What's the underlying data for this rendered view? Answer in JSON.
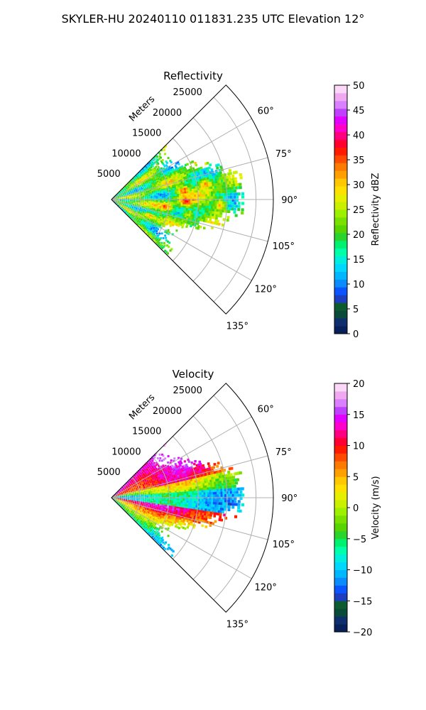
{
  "figure_title": "SKYLER-HU  20240110  011831.235 UTC Elevation 12°",
  "chart_data": [
    {
      "type": "polar-sector",
      "title": "Reflectivity",
      "radial_label": "Meters",
      "radial_ticks": [
        "5000",
        "10000",
        "15000",
        "20000",
        "25000"
      ],
      "radial_tick_values": [
        5000,
        10000,
        15000,
        20000,
        25000
      ],
      "rmax": 28000,
      "theta_range_deg": [
        45,
        135
      ],
      "theta_ticks": [
        "60°",
        "75°",
        "90°",
        "105°",
        "120°",
        "135°"
      ],
      "theta_tick_values": [
        60,
        75,
        90,
        105,
        120,
        135
      ],
      "echo_max_range": 23000,
      "colorbar": {
        "label": "Reflectivity dBZ",
        "range": [
          0,
          50
        ],
        "ticks": [
          "0",
          "5",
          "10",
          "15",
          "20",
          "25",
          "30",
          "35",
          "40",
          "45",
          "50"
        ],
        "tick_values": [
          0,
          5,
          10,
          15,
          20,
          25,
          30,
          35,
          40,
          45,
          50
        ],
        "colors": [
          "#08205a",
          "#0e2e6e",
          "#0a4a3a",
          "#0d5c30",
          "#1d3fbf",
          "#0a55ff",
          "#0a8cff",
          "#00b7ff",
          "#00d8ff",
          "#00eedd",
          "#00ffaa",
          "#00f070",
          "#2ad42a",
          "#58d400",
          "#7ae000",
          "#9cf000",
          "#c8f000",
          "#e6ef00",
          "#ffe000",
          "#ffc800",
          "#ffa000",
          "#ff7a00",
          "#ff4a00",
          "#ff1a00",
          "#ff0030",
          "#ff0080",
          "#ff00c8",
          "#e200ff",
          "#c040ff",
          "#d880ff",
          "#f0a8f0",
          "#fbd8f8"
        ]
      }
    },
    {
      "type": "polar-sector",
      "title": "Velocity",
      "radial_label": "Meters",
      "radial_ticks": [
        "5000",
        "10000",
        "15000",
        "20000",
        "25000"
      ],
      "radial_tick_values": [
        5000,
        10000,
        15000,
        20000,
        25000
      ],
      "rmax": 28000,
      "theta_range_deg": [
        45,
        135
      ],
      "theta_ticks": [
        "60°",
        "75°",
        "90°",
        "105°",
        "120°",
        "135°"
      ],
      "theta_tick_values": [
        60,
        75,
        90,
        105,
        120,
        135
      ],
      "echo_max_range": 23000,
      "colorbar": {
        "label": "Velocity (m/s)",
        "range": [
          -20,
          20
        ],
        "ticks": [
          "−20",
          "−15",
          "−10",
          "−5",
          "0",
          "5",
          "10",
          "15",
          "20"
        ],
        "tick_values": [
          -20,
          -15,
          -10,
          -5,
          0,
          5,
          10,
          15,
          20
        ],
        "colors": [
          "#08205a",
          "#0e2e6e",
          "#0a4a3a",
          "#0d5c30",
          "#1d3fbf",
          "#0a55ff",
          "#0a8cff",
          "#00b7ff",
          "#00d8ff",
          "#00eedd",
          "#00ffaa",
          "#00f070",
          "#2ad42a",
          "#58d400",
          "#7ae000",
          "#9cf000",
          "#c8f000",
          "#e6ef00",
          "#ffe000",
          "#ffc800",
          "#ffa000",
          "#ff7a00",
          "#ff4a00",
          "#ff1a00",
          "#ff0030",
          "#ff0080",
          "#ff00c8",
          "#e200ff",
          "#c040ff",
          "#d880ff",
          "#f0a8f0",
          "#fbd8f8"
        ]
      }
    }
  ]
}
